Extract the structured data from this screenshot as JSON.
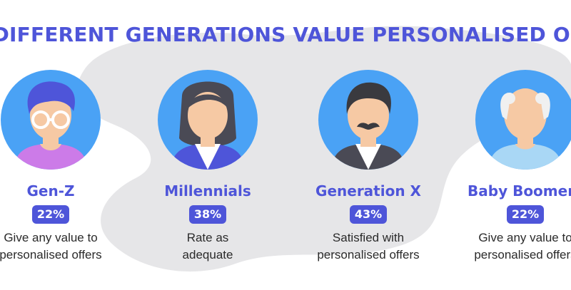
{
  "title": "HOW DIFFERENT GENERATIONS VALUE PERSONALISED OFFERS",
  "colors": {
    "accent": "#4e55d9",
    "badge": "#4e55d9",
    "avatar_bg": "#4aa2f5",
    "blob": "#e6e6e8",
    "skin": "#f6c9a4",
    "text": "#2a2a2a"
  },
  "generations": [
    {
      "name": "Gen-Z",
      "percent": "22%",
      "percent_value": 22,
      "desc_line1": "Give any value to",
      "desc_line2": "personalised offers",
      "icon": "gen-z-avatar-icon"
    },
    {
      "name": "Millennials",
      "percent": "38%",
      "percent_value": 38,
      "desc_line1": "Rate as",
      "desc_line2": "adequate",
      "icon": "millennial-avatar-icon"
    },
    {
      "name": "Generation X",
      "percent": "43%",
      "percent_value": 43,
      "desc_line1": "Satisfied with",
      "desc_line2": "personalised offers",
      "icon": "generation-x-avatar-icon"
    },
    {
      "name": "Baby Boomers",
      "percent": "22%",
      "percent_value": 22,
      "desc_line1": "Give any value to",
      "desc_line2": "personalised offers",
      "icon": "baby-boomer-avatar-icon"
    }
  ]
}
